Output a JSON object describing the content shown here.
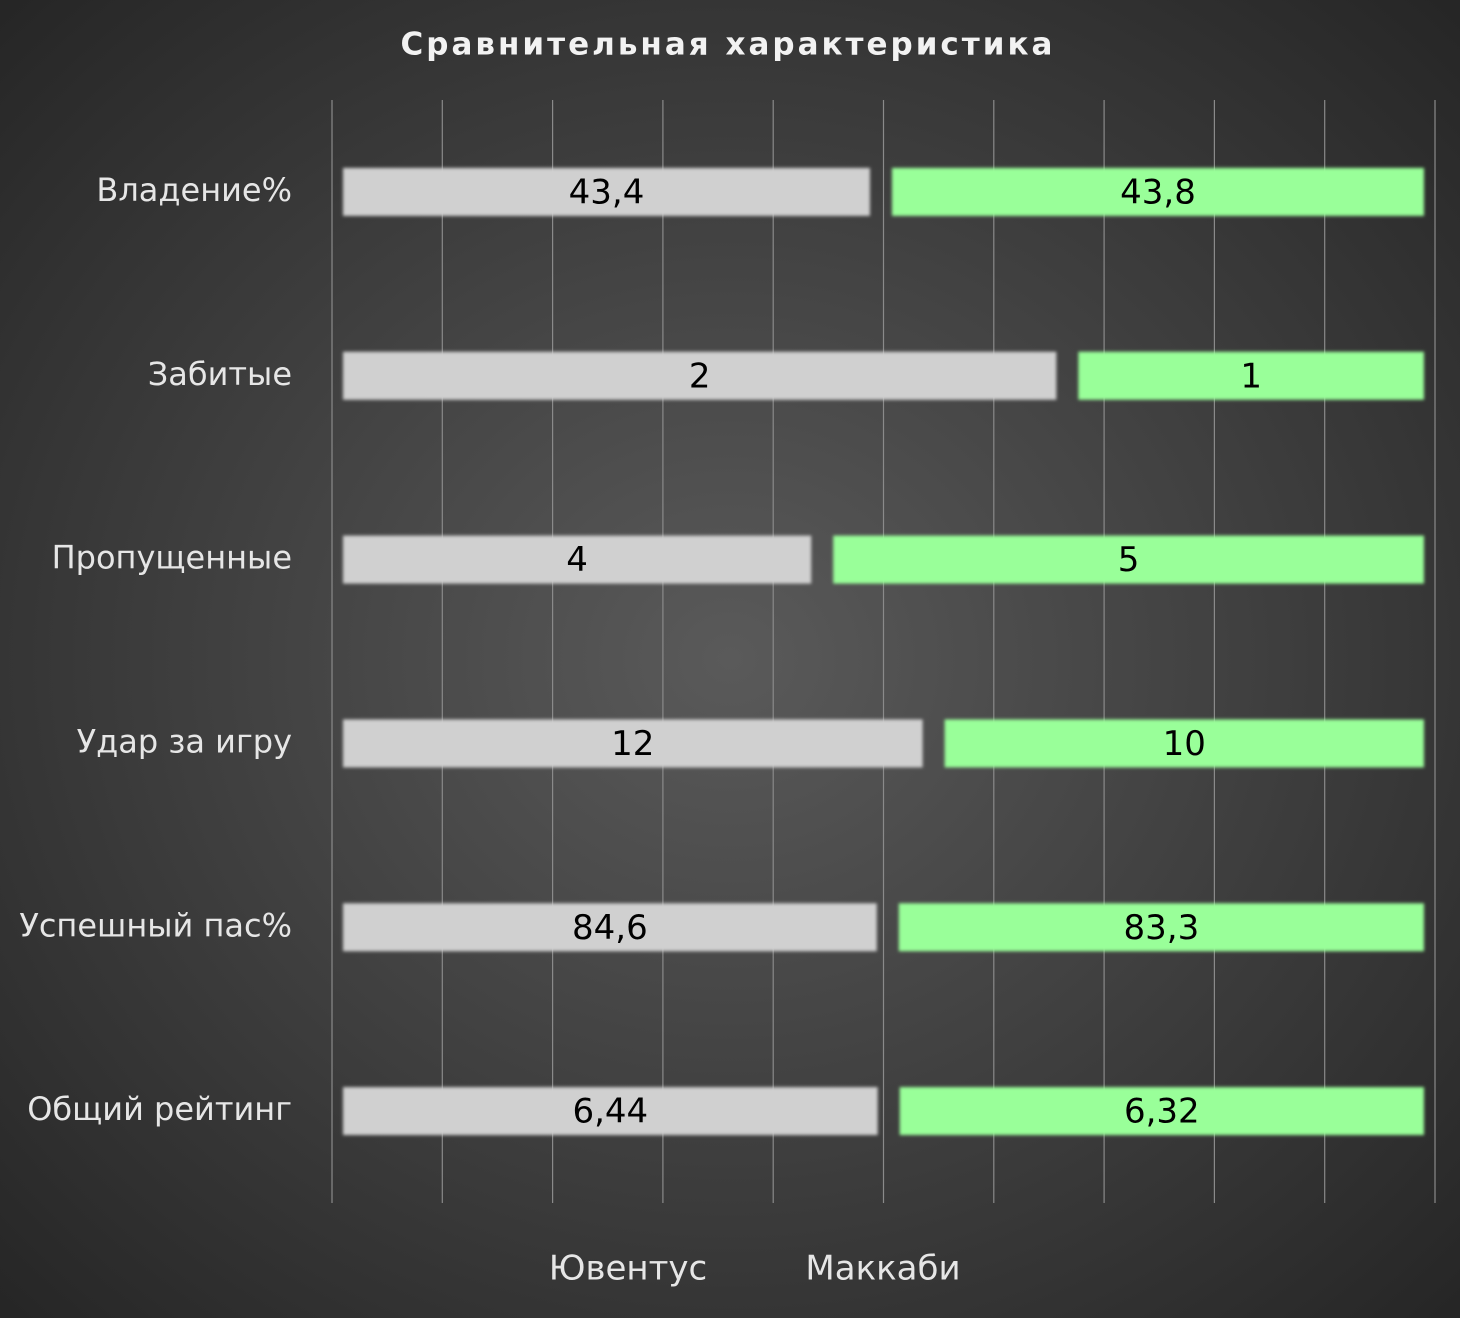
{
  "chart_data": {
    "type": "bar",
    "orientation": "horizontal",
    "stacking": "percent",
    "title": "Сравнительная характеристика",
    "categories": [
      "Владение%",
      "Забитые",
      "Пропущенные",
      "Удар за игру",
      "Успешный пас%",
      "Общий рейтинг"
    ],
    "series": [
      {
        "name": "Ювентус",
        "color": "#d0d0d0",
        "values": [
          43.4,
          2,
          4,
          12,
          84.6,
          6.44
        ],
        "value_labels": [
          "43,4",
          "2",
          "4",
          "12",
          "84,6",
          "6,44"
        ]
      },
      {
        "name": "Маккаби",
        "color": "#99ff99",
        "values": [
          43.8,
          1,
          5,
          10,
          83.3,
          6.32
        ],
        "value_labels": [
          "43,8",
          "1",
          "5",
          "10",
          "83,3",
          "6,32"
        ]
      }
    ],
    "xlim": [
      0,
      100
    ],
    "xticks": [
      0,
      10,
      20,
      30,
      40,
      50,
      60,
      70,
      80,
      90,
      100
    ],
    "show_tick_labels": false,
    "grid": true,
    "legend": "bottom"
  }
}
